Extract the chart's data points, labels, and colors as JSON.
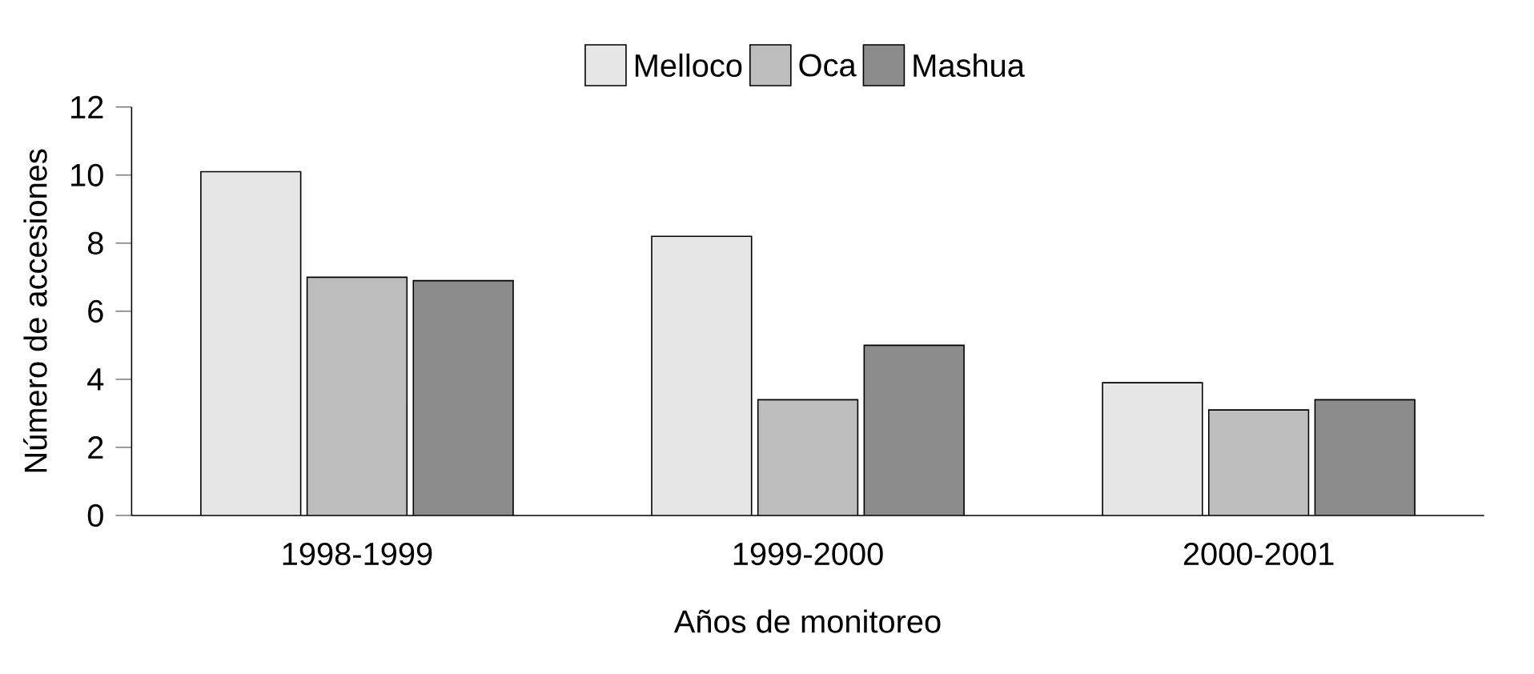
{
  "chart_data": {
    "type": "bar",
    "xlabel": "Años de monitoreo",
    "ylabel": "Número de accesiones",
    "categories": [
      "1998-1999",
      "1999-2000",
      "2000-2001"
    ],
    "series": [
      {
        "name": "Melloco",
        "color": "#e6e6e6",
        "values": [
          10.1,
          8.2,
          3.9
        ]
      },
      {
        "name": "Oca",
        "color": "#bdbdbd",
        "values": [
          7.0,
          3.4,
          3.1
        ]
      },
      {
        "name": "Mashua",
        "color": "#8c8c8c",
        "values": [
          6.9,
          5.0,
          3.4
        ]
      }
    ],
    "ylim": [
      0,
      12
    ],
    "yticks": [
      0,
      2,
      4,
      6,
      8,
      10,
      12
    ],
    "legend": "top",
    "grid": false
  }
}
